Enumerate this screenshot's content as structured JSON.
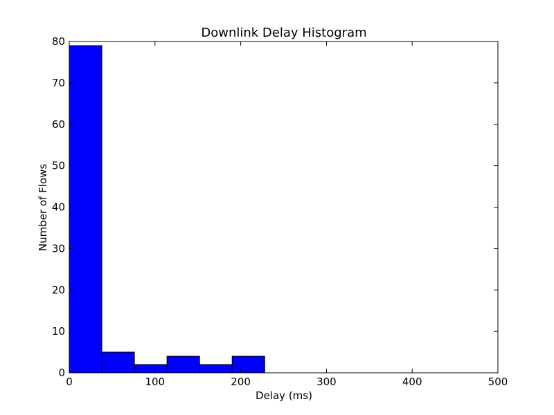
{
  "chart_data": {
    "type": "bar",
    "title": "Downlink Delay Histogram",
    "xlabel": "Delay (ms)",
    "ylabel": "Number of Flows",
    "xlim": [
      0,
      500
    ],
    "ylim": [
      0,
      80
    ],
    "xticks": [
      0,
      100,
      200,
      300,
      400,
      500
    ],
    "yticks": [
      0,
      10,
      20,
      30,
      40,
      50,
      60,
      70,
      80
    ],
    "bins": [
      {
        "x0": 0,
        "x1": 38,
        "count": 79
      },
      {
        "x0": 38,
        "x1": 76,
        "count": 5
      },
      {
        "x0": 76,
        "x1": 114,
        "count": 2
      },
      {
        "x0": 114,
        "x1": 152,
        "count": 4
      },
      {
        "x0": 152,
        "x1": 190,
        "count": 2
      },
      {
        "x0": 190,
        "x1": 228,
        "count": 4
      }
    ],
    "bar_color": "#0000ff",
    "grid": false
  }
}
